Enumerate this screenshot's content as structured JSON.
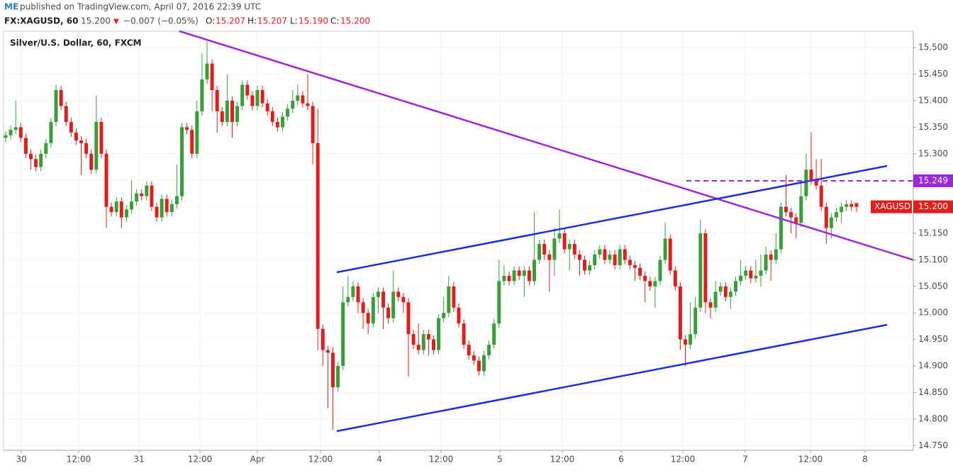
{
  "header": {
    "author": "ME",
    "published": "published on TradingView.com, April 07, 2016 22:39 UTC",
    "symbol": "FX:XAGUSD, 60",
    "last": "15.200",
    "arrow": "▼",
    "change": "−0.007 (−0.05%)",
    "o_label": "O:",
    "o": "15.207",
    "h_label": "H:",
    "h": "15.207",
    "l_label": "L:",
    "l": "15.190",
    "c_label": "C:",
    "c": "15.200"
  },
  "chart_data": {
    "type": "candlestick",
    "title": "Silver/U.S. Dollar, 60, FXCM",
    "up_color": "#3a9d3a",
    "down_color": "#e01e1e",
    "ylim": [
      14.741,
      15.531
    ],
    "yticks": [
      {
        "value": 14.75,
        "label": "14.750"
      },
      {
        "value": 14.8,
        "label": "14.800"
      },
      {
        "value": 14.85,
        "label": "14.850"
      },
      {
        "value": 14.9,
        "label": "14.900"
      },
      {
        "value": 14.95,
        "label": "14.950"
      },
      {
        "value": 15.0,
        "label": "15.000"
      },
      {
        "value": 15.05,
        "label": "15.050"
      },
      {
        "value": 15.1,
        "label": "15.100"
      },
      {
        "value": 15.15,
        "label": "15.150"
      },
      {
        "value": 15.2,
        "label": "15.200"
      },
      {
        "value": 15.25,
        "label": "15.250"
      },
      {
        "value": 15.3,
        "label": "15.300"
      },
      {
        "value": 15.35,
        "label": "15.350"
      },
      {
        "value": 15.4,
        "label": "15.400"
      },
      {
        "value": 15.45,
        "label": "15.450"
      },
      {
        "value": 15.5,
        "label": "15.500"
      }
    ],
    "xlabels": [
      "30",
      "12:00",
      "31",
      "12:00",
      "Apr",
      "12:00",
      "4",
      "12:00",
      "5",
      "12:00",
      "6",
      "12:00",
      "7",
      "12:00",
      "8"
    ],
    "price_tags": [
      {
        "value": 15.249,
        "label": "15.249",
        "color": "#9c27d8"
      },
      {
        "value": 15.2,
        "label": "15.200",
        "color": "#e01e1e"
      }
    ],
    "symbol_tag": "XAGUSD",
    "ohlc": [
      [
        15.33,
        15.343,
        15.322,
        15.335
      ],
      [
        15.335,
        15.353,
        15.327,
        15.345
      ],
      [
        15.345,
        15.4,
        15.337,
        15.35
      ],
      [
        15.35,
        15.358,
        15.322,
        15.33
      ],
      [
        15.33,
        15.338,
        15.292,
        15.3
      ],
      [
        15.3,
        15.308,
        15.27,
        15.29
      ],
      [
        15.29,
        15.298,
        15.267,
        15.275
      ],
      [
        15.275,
        15.308,
        15.267,
        15.3
      ],
      [
        15.3,
        15.328,
        15.292,
        15.32
      ],
      [
        15.32,
        15.368,
        15.312,
        15.36
      ],
      [
        15.36,
        15.43,
        15.352,
        15.42
      ],
      [
        15.42,
        15.428,
        15.382,
        15.39
      ],
      [
        15.39,
        15.398,
        15.352,
        15.36
      ],
      [
        15.36,
        15.368,
        15.332,
        15.34
      ],
      [
        15.34,
        15.348,
        15.317,
        15.325
      ],
      [
        15.325,
        15.333,
        15.26,
        15.32
      ],
      [
        15.32,
        15.328,
        15.292,
        15.3
      ],
      [
        15.3,
        15.308,
        15.262,
        15.27
      ],
      [
        15.27,
        15.41,
        15.262,
        15.36
      ],
      [
        15.36,
        15.368,
        15.292,
        15.3
      ],
      [
        15.3,
        15.308,
        15.16,
        15.2
      ],
      [
        15.2,
        15.208,
        15.182,
        15.19
      ],
      [
        15.19,
        15.218,
        15.182,
        15.21
      ],
      [
        15.21,
        15.218,
        15.16,
        15.18
      ],
      [
        15.18,
        15.203,
        15.172,
        15.195
      ],
      [
        15.195,
        15.25,
        15.187,
        15.21
      ],
      [
        15.21,
        15.233,
        15.202,
        15.225
      ],
      [
        15.225,
        15.233,
        15.212,
        15.22
      ],
      [
        15.22,
        15.248,
        15.212,
        15.24
      ],
      [
        15.24,
        15.248,
        15.192,
        15.2
      ],
      [
        15.2,
        15.208,
        15.172,
        15.18
      ],
      [
        15.18,
        15.223,
        15.172,
        15.215
      ],
      [
        15.215,
        15.223,
        15.182,
        15.19
      ],
      [
        15.19,
        15.213,
        15.182,
        15.205
      ],
      [
        15.205,
        15.28,
        15.197,
        15.22
      ],
      [
        15.22,
        15.358,
        15.212,
        15.35
      ],
      [
        15.35,
        15.358,
        15.337,
        15.345
      ],
      [
        15.345,
        15.353,
        15.292,
        15.3
      ],
      [
        15.3,
        15.4,
        15.292,
        15.38
      ],
      [
        15.38,
        15.49,
        15.372,
        15.44
      ],
      [
        15.44,
        15.512,
        15.432,
        15.47
      ],
      [
        15.47,
        15.478,
        15.38,
        15.42
      ],
      [
        15.42,
        15.428,
        15.34,
        15.38
      ],
      [
        15.38,
        15.388,
        15.352,
        15.36
      ],
      [
        15.36,
        15.45,
        15.352,
        15.4
      ],
      [
        15.4,
        15.408,
        15.33,
        15.36
      ],
      [
        15.36,
        15.398,
        15.352,
        15.39
      ],
      [
        15.39,
        15.438,
        15.382,
        15.43
      ],
      [
        15.43,
        15.438,
        15.402,
        15.41
      ],
      [
        15.41,
        15.418,
        15.382,
        15.39
      ],
      [
        15.39,
        15.428,
        15.382,
        15.42
      ],
      [
        15.42,
        15.428,
        15.387,
        15.395
      ],
      [
        15.395,
        15.403,
        15.372,
        15.38
      ],
      [
        15.38,
        15.388,
        15.352,
        15.36
      ],
      [
        15.36,
        15.368,
        15.342,
        15.35
      ],
      [
        15.35,
        15.378,
        15.342,
        15.37
      ],
      [
        15.37,
        15.393,
        15.362,
        15.385
      ],
      [
        15.385,
        15.42,
        15.377,
        15.4
      ],
      [
        15.4,
        15.43,
        15.392,
        15.41
      ],
      [
        15.41,
        15.418,
        15.387,
        15.395
      ],
      [
        15.395,
        15.45,
        15.382,
        15.39
      ],
      [
        15.39,
        15.398,
        15.28,
        15.32
      ],
      [
        15.32,
        15.385,
        14.93,
        14.97
      ],
      [
        14.97,
        14.978,
        14.9,
        14.93
      ],
      [
        14.93,
        14.938,
        14.82,
        14.925
      ],
      [
        14.925,
        14.935,
        14.78,
        14.86
      ],
      [
        14.86,
        14.908,
        14.852,
        14.9
      ],
      [
        14.9,
        15.05,
        14.892,
        15.02
      ],
      [
        15.02,
        15.07,
        15.012,
        15.03
      ],
      [
        15.03,
        15.06,
        15.022,
        15.05
      ],
      [
        15.05,
        15.058,
        15.0,
        15.02
      ],
      [
        15.02,
        15.028,
        14.97,
        15.0
      ],
      [
        15.0,
        15.008,
        14.96,
        14.98
      ],
      [
        14.98,
        15.038,
        14.972,
        15.03
      ],
      [
        15.03,
        15.048,
        15.0,
        15.04
      ],
      [
        15.04,
        15.048,
        14.97,
        15.01
      ],
      [
        15.01,
        15.018,
        14.98,
        14.99
      ],
      [
        14.99,
        15.08,
        14.982,
        15.04
      ],
      [
        15.04,
        15.048,
        15.022,
        15.03
      ],
      [
        15.03,
        15.038,
        15.0,
        15.02
      ],
      [
        15.02,
        15.028,
        14.88,
        14.96
      ],
      [
        14.96,
        14.968,
        14.932,
        14.94
      ],
      [
        14.94,
        14.98,
        14.922,
        14.93
      ],
      [
        14.93,
        14.968,
        14.922,
        14.96
      ],
      [
        14.96,
        14.968,
        14.92,
        14.95
      ],
      [
        14.95,
        14.958,
        14.922,
        14.93
      ],
      [
        14.93,
        14.998,
        14.922,
        14.99
      ],
      [
        14.99,
        15.03,
        14.982,
        15.0
      ],
      [
        15.0,
        15.07,
        14.992,
        15.05
      ],
      [
        15.05,
        15.058,
        15.002,
        15.01
      ],
      [
        15.01,
        15.018,
        14.972,
        14.98
      ],
      [
        14.98,
        14.988,
        14.932,
        14.94
      ],
      [
        14.94,
        14.948,
        14.912,
        14.92
      ],
      [
        14.92,
        14.928,
        14.902,
        14.91
      ],
      [
        14.91,
        14.918,
        14.882,
        14.89
      ],
      [
        14.89,
        14.928,
        14.882,
        14.92
      ],
      [
        14.92,
        14.948,
        14.912,
        14.94
      ],
      [
        14.94,
        14.988,
        14.932,
        14.98
      ],
      [
        14.98,
        15.1,
        14.972,
        15.06
      ],
      [
        15.06,
        15.09,
        15.052,
        15.07
      ],
      [
        15.07,
        15.078,
        15.052,
        15.06
      ],
      [
        15.06,
        15.088,
        15.052,
        15.08
      ],
      [
        15.08,
        15.088,
        15.062,
        15.07
      ],
      [
        15.07,
        15.088,
        15.03,
        15.08
      ],
      [
        15.08,
        15.088,
        15.052,
        15.06
      ],
      [
        15.06,
        15.19,
        15.052,
        15.1
      ],
      [
        15.1,
        15.138,
        15.092,
        15.13
      ],
      [
        15.13,
        15.138,
        15.1,
        15.11
      ],
      [
        15.11,
        15.118,
        15.04,
        15.1
      ],
      [
        15.1,
        15.16,
        15.07,
        15.14
      ],
      [
        15.14,
        15.195,
        15.132,
        15.15
      ],
      [
        15.15,
        15.158,
        15.112,
        15.12
      ],
      [
        15.12,
        15.138,
        15.08,
        15.13
      ],
      [
        15.13,
        15.138,
        15.102,
        15.11
      ],
      [
        15.11,
        15.118,
        15.07,
        15.1
      ],
      [
        15.1,
        15.108,
        15.072,
        15.08
      ],
      [
        15.08,
        15.098,
        15.072,
        15.09
      ],
      [
        15.09,
        15.118,
        15.082,
        15.11
      ],
      [
        15.11,
        15.128,
        15.102,
        15.12
      ],
      [
        15.12,
        15.128,
        15.092,
        15.1
      ],
      [
        15.1,
        15.118,
        15.092,
        15.11
      ],
      [
        15.11,
        15.118,
        15.082,
        15.09
      ],
      [
        15.09,
        15.128,
        15.082,
        15.12
      ],
      [
        15.12,
        15.128,
        15.092,
        15.1
      ],
      [
        15.1,
        15.108,
        15.082,
        15.09
      ],
      [
        15.09,
        15.098,
        15.06,
        15.085
      ],
      [
        15.085,
        15.093,
        15.062,
        15.07
      ],
      [
        15.07,
        15.078,
        15.02,
        15.06
      ],
      [
        15.06,
        15.068,
        15.042,
        15.05
      ],
      [
        15.05,
        15.068,
        15.01,
        15.06
      ],
      [
        15.06,
        15.108,
        15.052,
        15.1
      ],
      [
        15.1,
        15.17,
        15.092,
        15.14
      ],
      [
        15.14,
        15.148,
        15.072,
        15.08
      ],
      [
        15.08,
        15.088,
        15.042,
        15.05
      ],
      [
        15.05,
        15.058,
        14.93,
        14.95
      ],
      [
        14.95,
        14.958,
        14.9,
        14.94
      ],
      [
        14.94,
        15.02,
        14.932,
        14.96
      ],
      [
        14.96,
        15.03,
        14.952,
        15.01
      ],
      [
        15.01,
        15.175,
        15.002,
        15.15
      ],
      [
        15.15,
        15.158,
        15.0,
        15.02
      ],
      [
        15.02,
        15.028,
        14.99,
        15.01
      ],
      [
        15.01,
        15.06,
        15.002,
        15.04
      ],
      [
        15.04,
        15.058,
        15.032,
        15.05
      ],
      [
        15.05,
        15.058,
        15.022,
        15.03
      ],
      [
        15.03,
        15.048,
        15.008,
        15.04
      ],
      [
        15.04,
        15.068,
        15.032,
        15.06
      ],
      [
        15.06,
        15.1,
        15.052,
        15.07
      ],
      [
        15.07,
        15.088,
        15.062,
        15.08
      ],
      [
        15.08,
        15.088,
        15.057,
        15.065
      ],
      [
        15.065,
        15.1,
        15.057,
        15.07
      ],
      [
        15.07,
        15.11,
        15.05,
        15.08
      ],
      [
        15.08,
        15.125,
        15.072,
        15.11
      ],
      [
        15.11,
        15.118,
        15.06,
        15.1
      ],
      [
        15.1,
        15.15,
        15.092,
        15.12
      ],
      [
        15.12,
        15.208,
        15.112,
        15.2
      ],
      [
        15.2,
        15.26,
        15.182,
        15.19
      ],
      [
        15.19,
        15.198,
        15.15,
        15.18
      ],
      [
        15.18,
        15.188,
        15.14,
        15.17
      ],
      [
        15.17,
        15.25,
        15.162,
        15.22
      ],
      [
        15.22,
        15.3,
        15.212,
        15.27
      ],
      [
        15.27,
        15.34,
        15.242,
        15.25
      ],
      [
        15.25,
        15.29,
        15.232,
        15.24
      ],
      [
        15.24,
        15.29,
        15.192,
        15.2
      ],
      [
        15.2,
        15.208,
        15.13,
        15.16
      ],
      [
        15.16,
        15.188,
        15.14,
        15.18
      ],
      [
        15.18,
        15.198,
        15.172,
        15.19
      ],
      [
        15.19,
        15.208,
        15.17,
        15.2
      ],
      [
        15.2,
        15.213,
        15.192,
        15.205
      ],
      [
        15.205,
        15.212,
        15.192,
        15.2
      ],
      [
        15.207,
        15.207,
        15.19,
        15.2
      ]
    ]
  }
}
